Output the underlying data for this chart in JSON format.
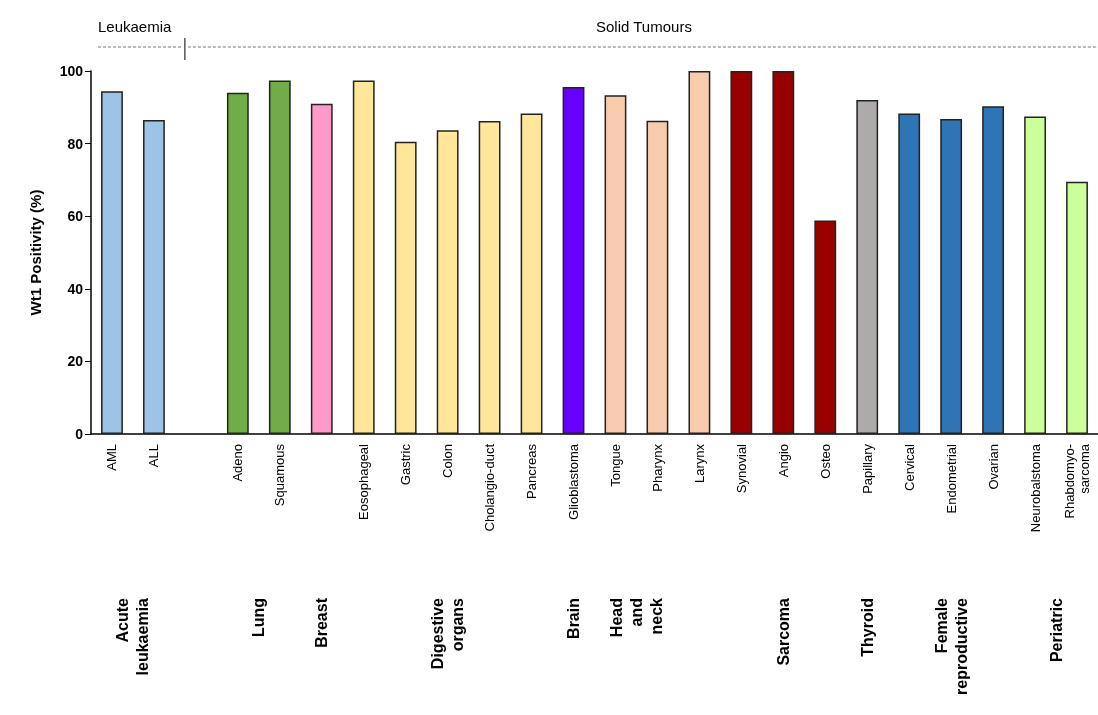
{
  "chart_data": {
    "type": "bar",
    "ylabel": "Wt1 Positivity (%)",
    "categories": [
      "AML",
      "ALL",
      null,
      "Adeno",
      "Squamous",
      null,
      "Eosophageal",
      "Gastric",
      "Colon",
      "Cholangio-duct",
      "Pancreas",
      "Glioblastoma",
      "Tongue",
      "Pharynx",
      "Larynx",
      "Synovial",
      "Angio",
      "Osteo",
      "Papillary",
      "Cervical",
      "Endometrial",
      "Ovarian",
      "Neurobalstoma",
      "Rhabdomyo-\nsarcoma"
    ],
    "values": [
      94.4,
      86.5,
      null,
      94,
      97.4,
      91,
      97.4,
      80.5,
      83.7,
      86.2,
      88.3,
      95.6,
      93.3,
      86.3,
      100,
      100,
      100,
      58.8,
      92,
      88.3,
      86.8,
      90.3,
      87.5,
      69.5
    ],
    "colors": [
      "#9dc3e6",
      "#9dc3e6",
      null,
      "#70ad47",
      "#70ad47",
      "#ff99cc",
      "#ffe699",
      "#ffe699",
      "#ffe699",
      "#ffe699",
      "#ffe699",
      "#6600ff",
      "#f8cbad",
      "#f8cbad",
      "#f8cbad",
      "#990000",
      "#990000",
      "#990000",
      "#aeaaaa",
      "#2e75b6",
      "#2e75b6",
      "#2e75b6",
      "#ccff99",
      "#ccff99"
    ],
    "ylim": [
      0,
      100
    ],
    "yticks": [
      0,
      20,
      40,
      60,
      80,
      100
    ],
    "grid": false,
    "annotations": [
      "Leukaemia",
      "Solid Tumours",
      "Acute\nleukaemia",
      "Lung",
      "Breast",
      "Digestive\norgans",
      "Brain",
      "Head\nand\nneck",
      "Sarcoma",
      "Thyroid",
      "Female\nreproductive",
      "Periatric"
    ]
  }
}
